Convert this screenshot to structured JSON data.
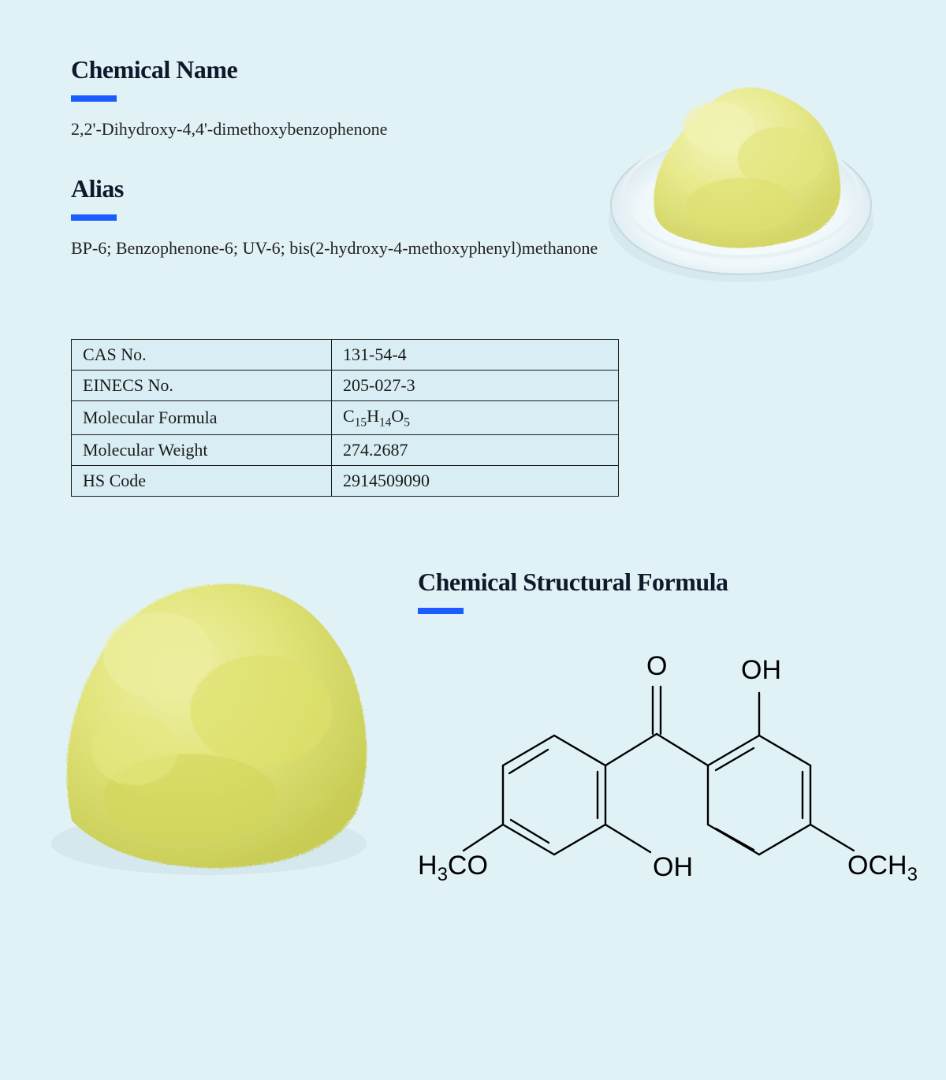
{
  "sections": {
    "chemical_name": {
      "heading": "Chemical Name",
      "text": "2,2'-Dihydroxy-4,4'-dimethoxybenzophenone"
    },
    "alias": {
      "heading": "Alias",
      "text": "BP-6; Benzophenone-6; UV-6; bis(2-hydroxy-4-methoxyphenyl)methanone"
    },
    "structure": {
      "heading": "Chemical Structural Formula"
    }
  },
  "accent_color": "#1a5cff",
  "heading_color": "#0d1a2b",
  "background_color": "#e1f2f7",
  "powder_color": "#e8e98a",
  "powder_highlight": "#f2f3b8",
  "powder_shadow": "#c8ca5c",
  "table": {
    "border_color": "#1a1a1a",
    "cell_bg": "#d9eef4",
    "rows": [
      {
        "label": "CAS No.",
        "value": "131-54-4"
      },
      {
        "label": "EINECS No.",
        "value": "205-027-3"
      },
      {
        "label": "Molecular Formula",
        "value_formula": {
          "parts": [
            "C",
            "15",
            "H",
            "14",
            "O",
            "5"
          ]
        }
      },
      {
        "label": "Molecular Weight",
        "value": "274.2687"
      },
      {
        "label": "HS Code",
        "value": "2914509090"
      }
    ]
  },
  "structure_diagram": {
    "bond_color": "#000000",
    "bond_width": 2.2,
    "label_font_size": 34,
    "labels": {
      "O_top": "O",
      "OH_top": "OH",
      "OH_mid": "OH",
      "H3CO": "H₃CO",
      "OCH3": "OCH₃"
    }
  }
}
